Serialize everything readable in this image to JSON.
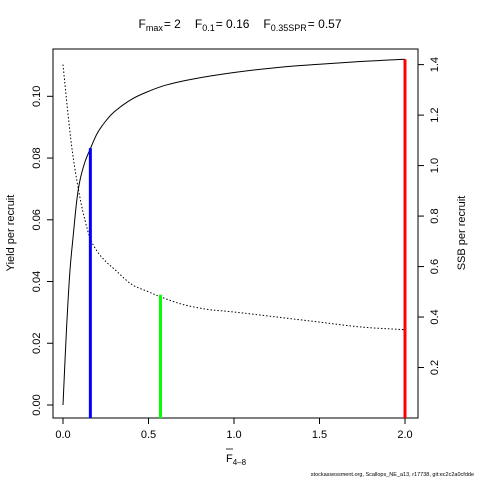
{
  "chart_data": {
    "type": "line",
    "title": {
      "fmax_label": "F",
      "fmax_sub": "max",
      "fmax_value": "= 2",
      "f01_label": "F",
      "f01_sub": "0.1",
      "f01_value": "= 0.16",
      "fspr_label": "F",
      "fspr_sub": "0.35SPR",
      "fspr_value": "= 0.57"
    },
    "xlabel": {
      "main": "F",
      "sub": "4–8"
    },
    "ylabel_left": "Yield per recruit",
    "ylabel_right": "SSB per recruit",
    "xlim": [
      0,
      2
    ],
    "ylim_left": [
      0,
      0.115
    ],
    "ylim_right": [
      0,
      1.45
    ],
    "x_ticks": [
      0,
      0.5,
      1,
      1.5,
      2
    ],
    "x_tick_labels": [
      "0.0",
      "0.5",
      "1.0",
      "1.5",
      "2.0"
    ],
    "y_left_ticks": [
      0,
      0.02,
      0.04,
      0.06,
      0.08,
      0.1
    ],
    "y_left_tick_labels": [
      "0.00",
      "0.02",
      "0.04",
      "0.06",
      "0.08",
      "0.10"
    ],
    "y_right_ticks": [
      0.2,
      0.4,
      0.6,
      0.8,
      1.0,
      1.2,
      1.4
    ],
    "y_right_tick_labels": [
      "0.2",
      "0.4",
      "0.6",
      "0.8",
      "1.0",
      "1.2",
      "1.4"
    ],
    "grid": false,
    "series": [
      {
        "axis": "left",
        "style": "solid",
        "x": [
          0,
          0.02,
          0.04,
          0.06,
          0.08,
          0.1,
          0.13,
          0.16,
          0.2,
          0.25,
          0.3,
          0.4,
          0.5,
          0.6,
          0.75,
          1.0,
          1.25,
          1.5,
          1.75,
          2.0
        ],
        "y": [
          0.0,
          0.024,
          0.043,
          0.055,
          0.066,
          0.073,
          0.079,
          0.083,
          0.088,
          0.092,
          0.095,
          0.099,
          0.1016,
          0.1036,
          0.1055,
          0.1077,
          0.1093,
          0.1104,
          0.1113,
          0.112
        ]
      },
      {
        "axis": "right",
        "style": "dotted",
        "x": [
          0,
          0.03,
          0.06,
          0.1,
          0.13,
          0.16,
          0.2,
          0.25,
          0.3,
          0.4,
          0.5,
          0.57,
          0.7,
          0.85,
          1.0,
          1.25,
          1.5,
          1.75,
          2.0
        ],
        "y": [
          1.4,
          1.2,
          1.03,
          0.87,
          0.78,
          0.71,
          0.66,
          0.62,
          0.59,
          0.53,
          0.5,
          0.48,
          0.45,
          0.43,
          0.42,
          0.4,
          0.38,
          0.36,
          0.35
        ]
      }
    ],
    "reference_lines": [
      {
        "x": 0.16,
        "y": 0.0832,
        "axis": "left",
        "color": "#0000ff"
      },
      {
        "x": 0.57,
        "y": 0.4882,
        "axis": "right",
        "color": "#00ff00"
      },
      {
        "x": 2.0,
        "y": 0.112,
        "axis": "left",
        "color": "#ff0000"
      }
    ],
    "footer": "stockassessment.org, Scallops_NE_a13, r17738, git:ec2c2a0cfdde"
  }
}
